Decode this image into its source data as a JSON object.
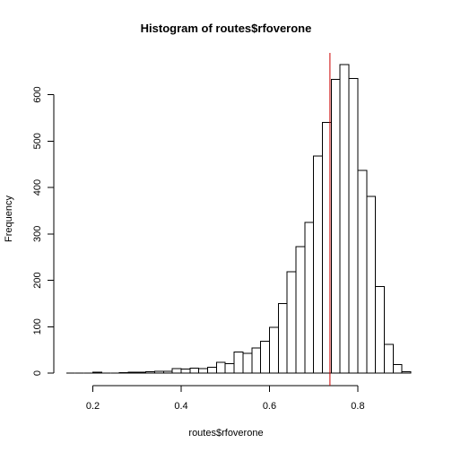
{
  "chart_data": {
    "type": "bar",
    "title": "Histogram of routes$rfoverone",
    "xlabel": "routes$rfoverone",
    "ylabel": "Frequency",
    "xlim": [
      0.14,
      0.92
    ],
    "ylim": [
      0,
      690
    ],
    "xticks": [
      0.2,
      0.4,
      0.6,
      0.8
    ],
    "yticks": [
      0,
      100,
      200,
      300,
      400,
      500,
      600
    ],
    "bin_width": 0.02,
    "bins": [
      {
        "x0": 0.14,
        "x1": 0.16,
        "count": 0
      },
      {
        "x0": 0.16,
        "x1": 0.18,
        "count": 0
      },
      {
        "x0": 0.18,
        "x1": 0.2,
        "count": 0
      },
      {
        "x0": 0.2,
        "x1": 0.22,
        "count": 2
      },
      {
        "x0": 0.22,
        "x1": 0.24,
        "count": 0
      },
      {
        "x0": 0.24,
        "x1": 0.26,
        "count": 0
      },
      {
        "x0": 0.26,
        "x1": 0.28,
        "count": 1
      },
      {
        "x0": 0.28,
        "x1": 0.3,
        "count": 2
      },
      {
        "x0": 0.3,
        "x1": 0.32,
        "count": 2
      },
      {
        "x0": 0.32,
        "x1": 0.34,
        "count": 3
      },
      {
        "x0": 0.34,
        "x1": 0.36,
        "count": 4
      },
      {
        "x0": 0.36,
        "x1": 0.38,
        "count": 4
      },
      {
        "x0": 0.38,
        "x1": 0.4,
        "count": 10
      },
      {
        "x0": 0.4,
        "x1": 0.42,
        "count": 9
      },
      {
        "x0": 0.42,
        "x1": 0.44,
        "count": 11
      },
      {
        "x0": 0.44,
        "x1": 0.46,
        "count": 10
      },
      {
        "x0": 0.46,
        "x1": 0.48,
        "count": 13
      },
      {
        "x0": 0.48,
        "x1": 0.5,
        "count": 23
      },
      {
        "x0": 0.5,
        "x1": 0.52,
        "count": 20
      },
      {
        "x0": 0.52,
        "x1": 0.54,
        "count": 45
      },
      {
        "x0": 0.54,
        "x1": 0.56,
        "count": 43
      },
      {
        "x0": 0.56,
        "x1": 0.58,
        "count": 54
      },
      {
        "x0": 0.58,
        "x1": 0.6,
        "count": 69
      },
      {
        "x0": 0.6,
        "x1": 0.62,
        "count": 99
      },
      {
        "x0": 0.62,
        "x1": 0.64,
        "count": 150
      },
      {
        "x0": 0.64,
        "x1": 0.66,
        "count": 218
      },
      {
        "x0": 0.66,
        "x1": 0.68,
        "count": 273
      },
      {
        "x0": 0.68,
        "x1": 0.7,
        "count": 325
      },
      {
        "x0": 0.7,
        "x1": 0.72,
        "count": 468
      },
      {
        "x0": 0.72,
        "x1": 0.74,
        "count": 540
      },
      {
        "x0": 0.74,
        "x1": 0.76,
        "count": 633
      },
      {
        "x0": 0.76,
        "x1": 0.78,
        "count": 665
      },
      {
        "x0": 0.78,
        "x1": 0.8,
        "count": 635
      },
      {
        "x0": 0.8,
        "x1": 0.82,
        "count": 437
      },
      {
        "x0": 0.82,
        "x1": 0.84,
        "count": 381
      },
      {
        "x0": 0.84,
        "x1": 0.86,
        "count": 187
      },
      {
        "x0": 0.86,
        "x1": 0.88,
        "count": 62
      },
      {
        "x0": 0.88,
        "x1": 0.9,
        "count": 18
      },
      {
        "x0": 0.9,
        "x1": 0.92,
        "count": 3
      }
    ],
    "reference_line": {
      "x": 0.737,
      "color": "#cc0000"
    },
    "bar_fill": "#ffffff",
    "bar_stroke": "#000000",
    "grid": false,
    "legend": "none"
  }
}
